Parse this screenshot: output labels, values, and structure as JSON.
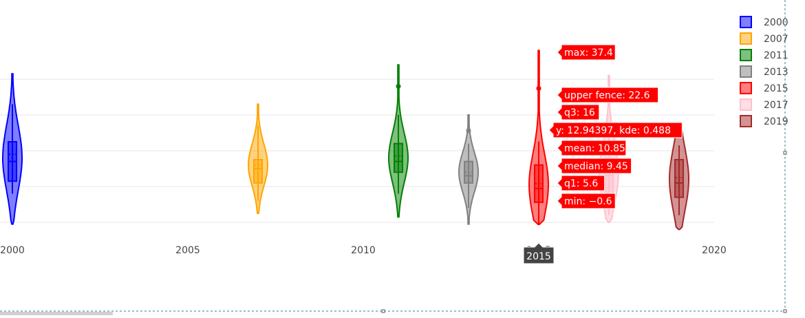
{
  "chart_data": {
    "type": "violin",
    "x_axis": {
      "ticks": [
        2000,
        2005,
        2010,
        2015,
        2020
      ]
    },
    "y_axis": {
      "range": [
        -5,
        45
      ],
      "gridlines": [
        0,
        10,
        20,
        30,
        40
      ],
      "tick_labels_visible": false
    },
    "grid": true,
    "legend": {
      "placement": "top-right"
    },
    "series": [
      {
        "name": "2000",
        "x": 2000,
        "color": "#0000ff",
        "fill": "rgba(0,0,255,0.5)",
        "min": -0.5,
        "max": 41.5,
        "q1": 11.5,
        "median": 17,
        "q3": 22.5,
        "mean": 19,
        "lower_fence": 8,
        "upper_fence": 33,
        "outliers": []
      },
      {
        "name": "2007",
        "x": 2007,
        "color": "#ffa500",
        "fill": "rgba(255,165,0,0.5)",
        "min": 2.5,
        "max": 33,
        "q1": 11,
        "median": 15,
        "q3": 17.5,
        "mean": 16,
        "lower_fence": 6,
        "upper_fence": 27,
        "outliers": []
      },
      {
        "name": "2011",
        "x": 2011,
        "color": "#008000",
        "fill": "rgba(0,128,0,0.5)",
        "min": 1.5,
        "max": 44,
        "q1": 14,
        "median": 17,
        "q3": 22,
        "mean": 18.5,
        "lower_fence": 8,
        "upper_fence": 30,
        "outliers": [
          38
        ]
      },
      {
        "name": "2013",
        "x": 2013,
        "color": "#808080",
        "fill": "rgba(128,128,128,0.5)",
        "min": -0.5,
        "max": 30,
        "q1": 11,
        "median": 13,
        "q3": 17,
        "mean": 14,
        "lower_fence": 4,
        "upper_fence": 22,
        "outliers": [
          25.6
        ]
      },
      {
        "name": "2015",
        "x": 2015,
        "color": "#ff0000",
        "fill": "rgba(255,0,0,0.5)",
        "min": -0.6,
        "max": 37.4,
        "q1": 5.6,
        "median": 9.45,
        "q3": 16,
        "mean": 10.85,
        "lower_fence": -0.6,
        "upper_fence": 22.6,
        "outliers": [
          37.4
        ],
        "violin_max": 48
      },
      {
        "name": "2017",
        "x": 2017,
        "color": "#ffc0cb",
        "fill": "rgba(255,192,203,0.5)",
        "min": 0,
        "max": 41,
        "q1": 8,
        "median": 13,
        "q3": 18,
        "mean": 13.5,
        "lower_fence": 2,
        "upper_fence": 28,
        "outliers": []
      },
      {
        "name": "2019",
        "x": 2019,
        "color": "#a52a2a",
        "fill": "rgba(165,42,42,0.5)",
        "min": -2,
        "max": 27,
        "q1": 7,
        "median": 11,
        "q3": 17.5,
        "mean": 12.5,
        "lower_fence": 2,
        "upper_fence": 21.5,
        "outliers": []
      }
    ],
    "hover": {
      "series": "2015",
      "x_label": "2015",
      "labels": [
        {
          "text": "max: 37.4",
          "y": 37.4
        },
        {
          "text": "upper fence: 22.6",
          "y": 22.6
        },
        {
          "text": "q3: 16",
          "y": 16
        },
        {
          "text": "y: 12.94397, kde: 0.488",
          "y": 12.94397
        },
        {
          "text": "mean: 10.85",
          "y": 10.85
        },
        {
          "text": "median: 9.45",
          "y": 9.45
        },
        {
          "text": "q1: 5.6",
          "y": 5.6
        },
        {
          "text": "min: −0.6",
          "y": -0.6
        }
      ]
    }
  }
}
